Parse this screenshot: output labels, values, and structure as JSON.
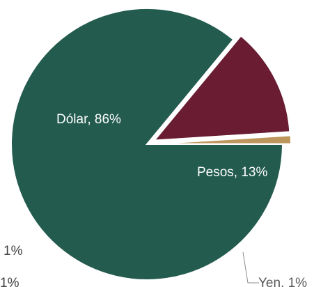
{
  "chart_data": {
    "type": "pie",
    "slices": [
      {
        "label": "Dólar",
        "value": 86,
        "display": "Dólar, 86%",
        "color": "#235b4e"
      },
      {
        "label": "Pesos",
        "value": 13,
        "display": "Pesos, 13%",
        "color": "#691c32"
      },
      {
        "label": "Yen",
        "value": 1,
        "display": "Yen, 1%",
        "color": "#bc955c"
      }
    ],
    "exploded": [
      "Pesos",
      "Yen"
    ],
    "stray_labels": [
      "1%",
      "1%"
    ]
  }
}
